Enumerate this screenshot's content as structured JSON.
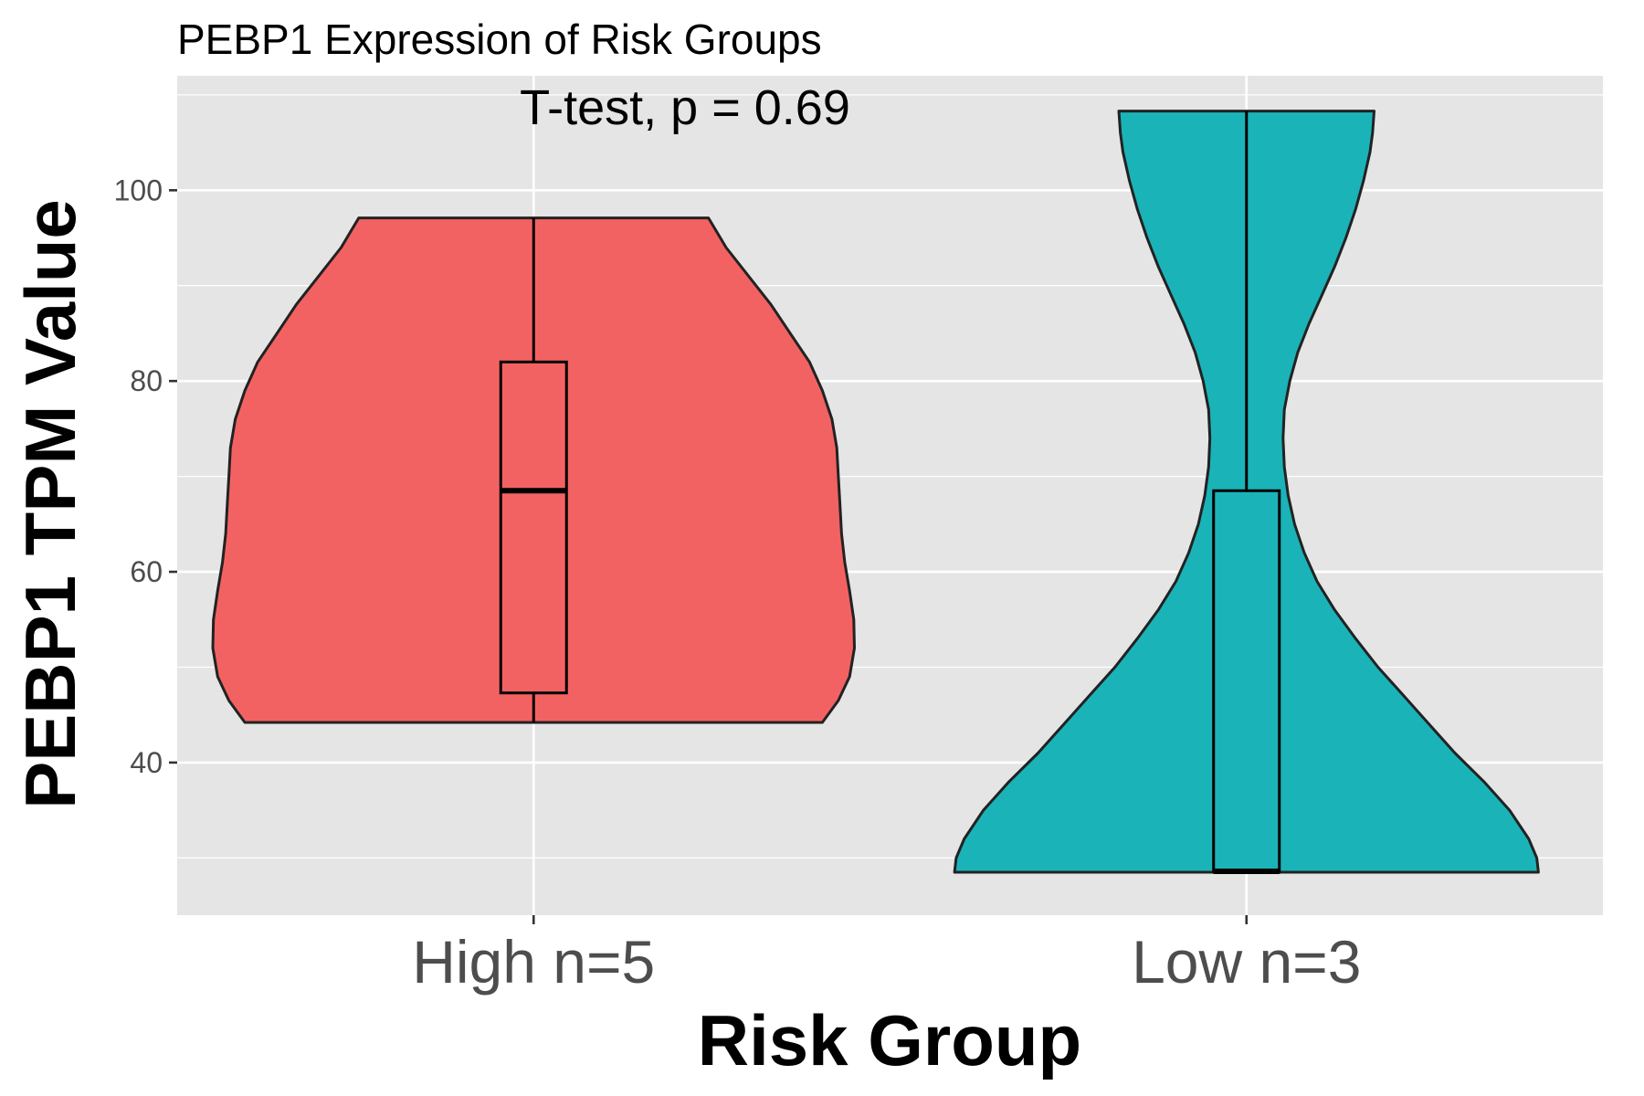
{
  "chart_data": {
    "type": "violin",
    "title": "PEBP1 Expression of Risk Groups",
    "annotation": "T-test, p = 0.69",
    "xlabel": "Risk Group",
    "ylabel": "PEBP1 TPM Value",
    "ylim": [
      24,
      112
    ],
    "yticks": [
      40,
      60,
      80,
      100
    ],
    "grid": true,
    "legend": "none",
    "categories": [
      "High n=5",
      "Low n=3"
    ],
    "series": [
      {
        "category": "High n=5",
        "color": "#F36262",
        "box": {
          "min": 44.2,
          "q1": 47.3,
          "median": 68.5,
          "q3": 82.0,
          "max": 97.1
        },
        "density": [
          [
            44.2,
            0.9
          ],
          [
            46.5,
            0.95
          ],
          [
            49.0,
            0.985
          ],
          [
            52.0,
            1.0
          ],
          [
            55.0,
            0.998
          ],
          [
            58.0,
            0.985
          ],
          [
            61.0,
            0.97
          ],
          [
            64.0,
            0.96
          ],
          [
            67.0,
            0.955
          ],
          [
            70.0,
            0.95
          ],
          [
            73.0,
            0.945
          ],
          [
            76.0,
            0.93
          ],
          [
            79.0,
            0.9
          ],
          [
            82.0,
            0.86
          ],
          [
            85.0,
            0.8
          ],
          [
            88.0,
            0.74
          ],
          [
            91.0,
            0.67
          ],
          [
            94.0,
            0.6
          ],
          [
            97.1,
            0.545
          ]
        ]
      },
      {
        "category": "Low n=3",
        "color": "#1AB3B8",
        "box": {
          "min": 28.5,
          "q1": 28.5,
          "median": 28.6,
          "q3": 68.5,
          "max": 108.3
        },
        "density": [
          [
            28.5,
            0.91
          ],
          [
            30.0,
            0.905
          ],
          [
            32.0,
            0.88
          ],
          [
            35.0,
            0.82
          ],
          [
            38.0,
            0.74
          ],
          [
            41.0,
            0.65
          ],
          [
            44.0,
            0.57
          ],
          [
            47.0,
            0.49
          ],
          [
            50.0,
            0.41
          ],
          [
            53.0,
            0.34
          ],
          [
            56.0,
            0.275
          ],
          [
            59.0,
            0.22
          ],
          [
            62.0,
            0.18
          ],
          [
            65.0,
            0.15
          ],
          [
            68.0,
            0.13
          ],
          [
            71.0,
            0.118
          ],
          [
            74.0,
            0.114
          ],
          [
            77.0,
            0.118
          ],
          [
            80.0,
            0.135
          ],
          [
            83.0,
            0.16
          ],
          [
            86.0,
            0.195
          ],
          [
            89.0,
            0.235
          ],
          [
            92.0,
            0.275
          ],
          [
            95.0,
            0.31
          ],
          [
            98.0,
            0.34
          ],
          [
            101.0,
            0.365
          ],
          [
            104.0,
            0.385
          ],
          [
            106.0,
            0.393
          ],
          [
            108.3,
            0.398
          ]
        ]
      }
    ]
  }
}
